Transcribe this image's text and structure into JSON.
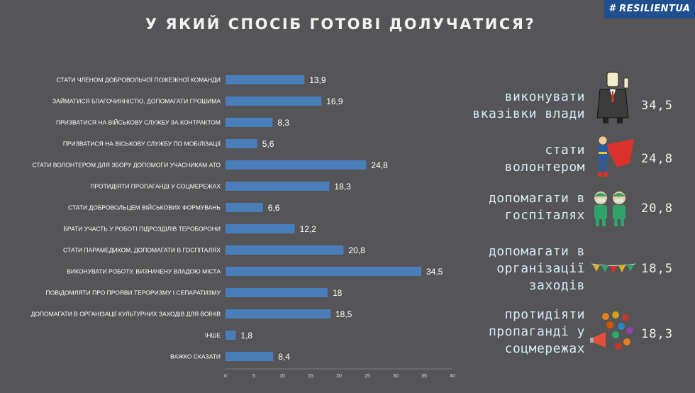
{
  "title": "У ЯКИЙ СПОСІБ ГОТОВІ ДОЛУЧАТИСЯ?",
  "logo": "# RESILIENTUA",
  "colors": {
    "background": "#555457",
    "bar": "#4a7ebb",
    "highlight_text": "#d6ecf3"
  },
  "chart_data": {
    "type": "bar",
    "orientation": "horizontal",
    "categories": [
      "СТАТИ ЧЛЕНОМ ДОБРОВОЛЬЧОЇ ПОЖЕЖНОЇ КОМАНДИ",
      "ЗАЙМАТИСЯ БЛАГОЧИННІСТЮ, ДОПОМАГАТИ ГРОШИМА",
      "ПРИЗВАТИСЯ НА ВІЙСЬКОВУ СЛУЖБУ ЗА КОНТРАКТОМ",
      "ПРИЗВАТИСЯ НА ВІСЬКОВУ СЛУЖБУ ПО МОБІЛІЗАЦІЇ",
      "СТАТИ ВОЛОНТЕРОМ ДЛЯ ЗБОРУ ДОПОМОГИ УЧАСНИКАМ АТО",
      "ПРОТИДІЯТИ ПРОПАГАНДІ У СОЦМЕРЕЖАХ",
      "СТАТИ ДОБРОВОЛЬЦЕМ ВІЙСЬКОВИХ ФОРМУВАНЬ",
      "БРАТИ УЧАСТЬ У РОБОТІ ПІДРОЗДІЛІВ ТЕРОБОРОНИ",
      "СТАТИ ПАРАМЕДИКОМ, ДОПОМАГАТИ В ГОСПІТАЛЯХ",
      "ВИКОНУВАТИ РОБОТУ, ВИЗНАЧЕНУ ВЛАДОЮ МІСТА",
      "ПОВІДОМЛЯТИ ПРО ПРОЯВИ ТЕРОРИЗМУ І СЕПАРАТИЗМУ",
      "ДОПОМАГАТИ В ОРГАНІЗАЦІЇ  КУЛЬТУРНИХ ЗАХОДІВ ДЛЯ ВОЇНІВ",
      "ІНШЕ",
      "ВАЖКО СКАЗАТИ"
    ],
    "values": [
      13.9,
      16.9,
      8.3,
      5.6,
      24.8,
      18.3,
      6.6,
      12.2,
      20.8,
      34.5,
      18,
      18.5,
      1.8,
      8.4
    ],
    "value_labels": [
      "13,9",
      "16,9",
      "8,3",
      "5,6",
      "24,8",
      "18,3",
      "6,6",
      "12,2",
      "20,8",
      "34,5",
      "18",
      "18,5",
      "1,8",
      "8,4"
    ],
    "xlim": [
      0,
      40
    ],
    "xticks": [
      0,
      5,
      10,
      15,
      20,
      25,
      30,
      35,
      40
    ],
    "grid": false,
    "legend": "none"
  },
  "highlights": [
    {
      "label_lines": [
        "виконувати",
        "вказівки влади"
      ],
      "value": "34,5",
      "icon": "official-icon"
    },
    {
      "label_lines": [
        "стати",
        "волонтером"
      ],
      "value": "24,8",
      "icon": "superhero-icon"
    },
    {
      "label_lines": [
        "допомагати в",
        "госпіталях"
      ],
      "value": "20,8",
      "icon": "medics-icon"
    },
    {
      "label_lines": [
        "допомагати   в",
        "організації",
        "заходів"
      ],
      "value": "18,5",
      "icon": "bunting-icon"
    },
    {
      "label_lines": [
        "протидіяти",
        "пропаганді у",
        "соцмережах"
      ],
      "value": "18,3",
      "icon": "megaphone-icon"
    }
  ]
}
